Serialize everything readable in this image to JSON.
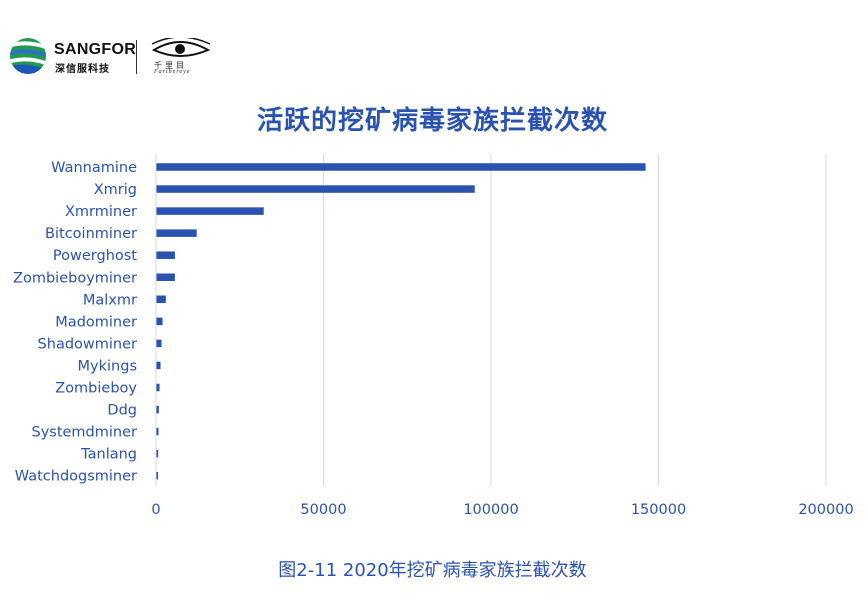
{
  "brand": {
    "name": "SANGFOR",
    "sub": "深信服科技",
    "eye_sub": "千里目",
    "eye_sub_en": "Farthereye"
  },
  "colors": {
    "bar": "#2a52b0",
    "label": "#2a52b0",
    "grid": "#d6d9e4",
    "title": "#2a52b0"
  },
  "chart_data": {
    "type": "bar",
    "orientation": "horizontal",
    "title": "活跃的挖矿病毒家族拦截次数",
    "caption": "图2-11 2020年挖矿病毒家族拦截次数",
    "xlabel": "",
    "ylabel": "",
    "categories": [
      "Wannamine",
      "Xmrig",
      "Xmrminer",
      "Bitcoinminer",
      "Powerghost",
      "Zombieboyminer",
      "Malxmr",
      "Madominer",
      "Shadowminer",
      "Mykings",
      "Zombieboy",
      "Ddg",
      "Systemdminer",
      "Tanlang",
      "Watchdogsminer"
    ],
    "values": [
      146000,
      95000,
      32000,
      12000,
      5500,
      5500,
      2800,
      1800,
      1500,
      1200,
      900,
      700,
      600,
      500,
      400
    ],
    "xlim": [
      0,
      200000
    ],
    "xticks": [
      0,
      50000,
      100000,
      150000,
      200000
    ],
    "grid": "vertical",
    "legend": "none"
  }
}
